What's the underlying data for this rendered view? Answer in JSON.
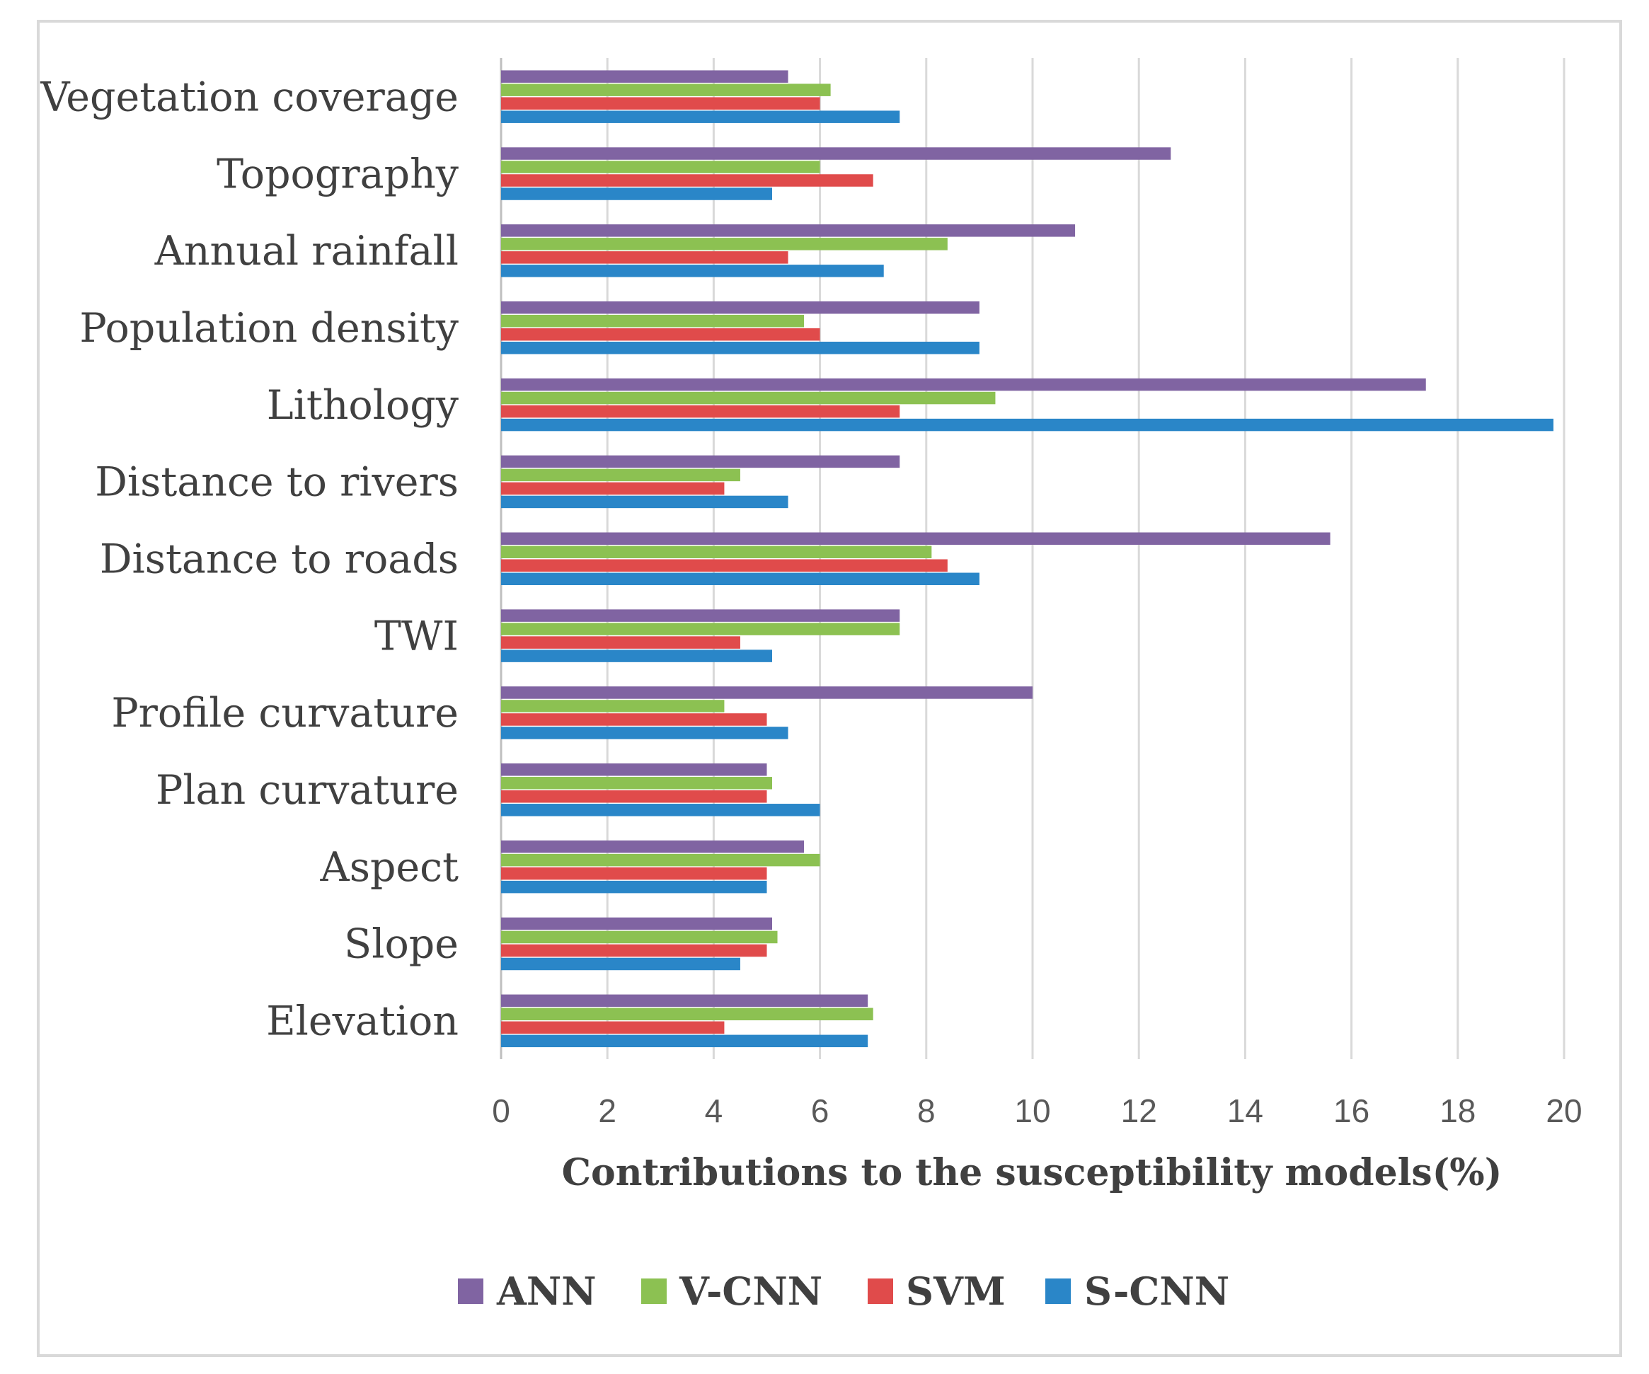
{
  "chart_data": {
    "type": "bar",
    "orientation": "horizontal",
    "title": "",
    "xlabel": "Contributions to the susceptibility models(%)",
    "ylabel": "",
    "xlim": [
      0,
      20
    ],
    "xticks": [
      0,
      2,
      4,
      6,
      8,
      10,
      12,
      14,
      16,
      18,
      20
    ],
    "grid": "vertical",
    "legend_position": "bottom",
    "categories": [
      "Vegetation coverage",
      "Topography",
      "Annual rainfall",
      "Population density",
      "Lithology",
      "Distance to rivers",
      "Distance to roads",
      "TWI",
      "Profile curvature",
      "Plan curvature",
      "Aspect",
      "Slope",
      "Elevation"
    ],
    "series": [
      {
        "name": "ANN",
        "color": "#8064a2",
        "values": [
          5.4,
          12.6,
          10.8,
          9.0,
          17.4,
          7.5,
          15.6,
          7.5,
          10.0,
          5.0,
          5.7,
          5.1,
          6.9
        ]
      },
      {
        "name": "V-CNN",
        "color": "#8cc152",
        "values": [
          6.2,
          6.0,
          8.4,
          5.7,
          9.3,
          4.5,
          8.1,
          7.5,
          4.2,
          5.1,
          6.0,
          5.2,
          7.0
        ]
      },
      {
        "name": "SVM",
        "color": "#e04b4b",
        "values": [
          6.0,
          7.0,
          5.4,
          6.0,
          7.5,
          4.2,
          8.4,
          4.5,
          5.0,
          5.0,
          5.0,
          5.0,
          4.2
        ]
      },
      {
        "name": "S-CNN",
        "color": "#2a86c8",
        "values": [
          7.5,
          5.1,
          7.2,
          9.0,
          19.8,
          5.4,
          9.0,
          5.1,
          5.4,
          6.0,
          5.0,
          4.5,
          6.9
        ]
      }
    ]
  }
}
